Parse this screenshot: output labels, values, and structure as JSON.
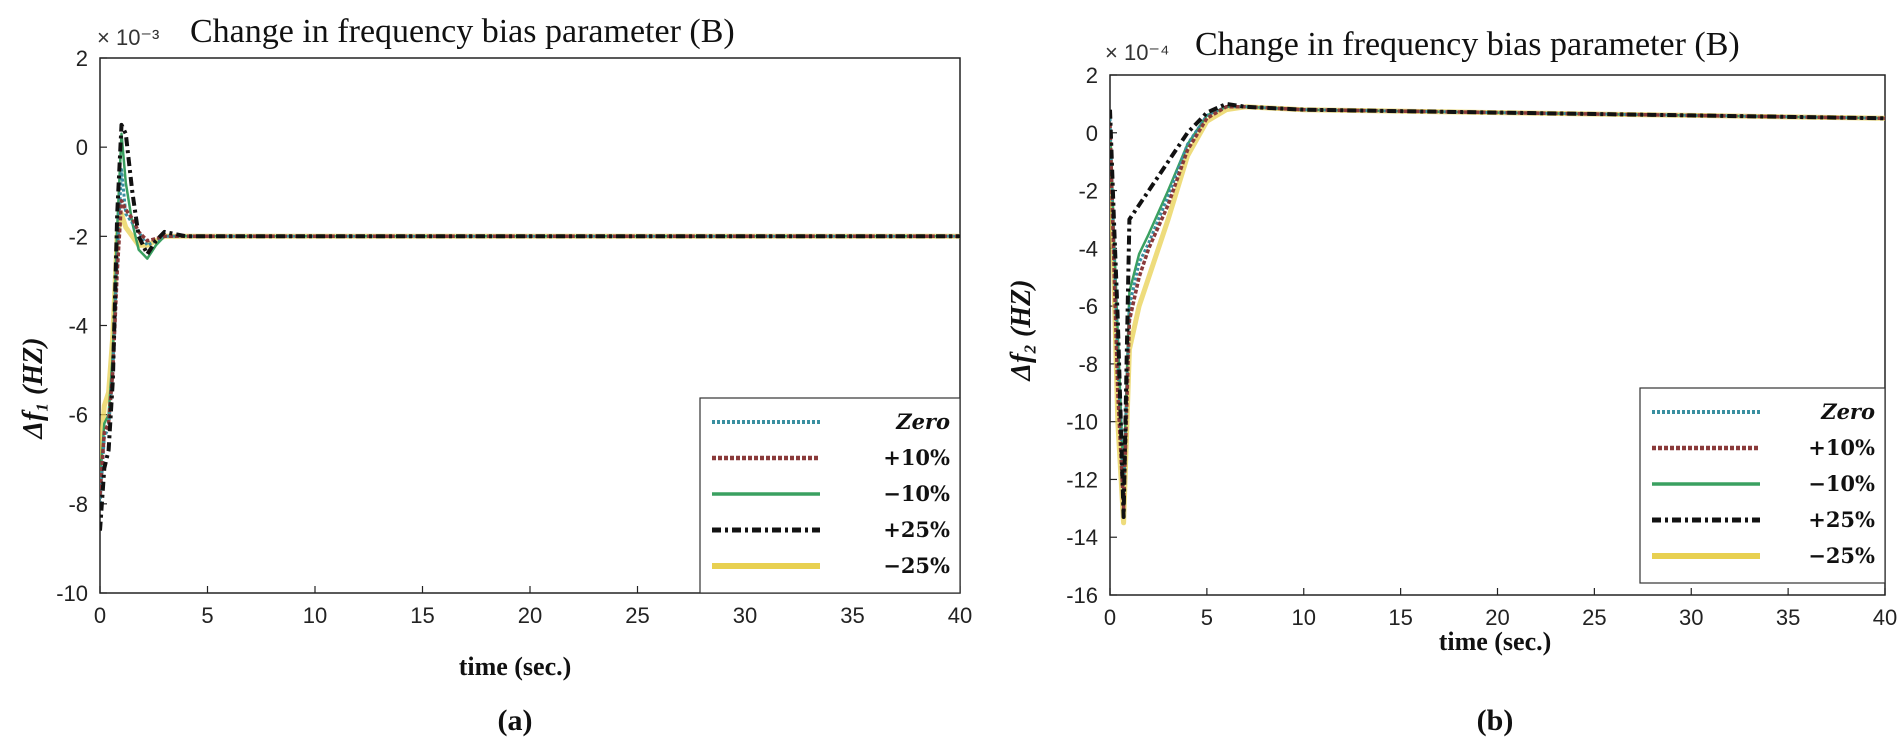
{
  "chart_data": [
    {
      "type": "line",
      "title": "Change in frequency bias parameter (B)",
      "multiplier": "× 10⁻³",
      "xlabel": "time (sec.)",
      "ylabel": "Δf₁ (HZ)",
      "caption": "(a)",
      "xlim": [
        0,
        40
      ],
      "ylim": [
        -10,
        2
      ],
      "xticks": [
        0,
        5,
        10,
        15,
        20,
        25,
        30,
        35,
        40
      ],
      "yticks": [
        -10,
        -8,
        -6,
        -4,
        -2,
        0,
        2
      ],
      "legend_position": "bottom-right",
      "series": [
        {
          "name": "Zero",
          "color": "#3a8fa0",
          "dash": "3,2",
          "width": 3,
          "x": [
            0,
            0.2,
            0.4,
            0.6,
            0.8,
            1.0,
            1.2,
            1.5,
            1.8,
            2.2,
            2.6,
            3,
            4,
            5,
            10,
            20,
            30,
            40
          ],
          "y": [
            -8.0,
            -6.5,
            -6.3,
            -5.0,
            -2.5,
            -0.5,
            -1.5,
            -1.7,
            -1.9,
            -2.2,
            -2.1,
            -2.0,
            -2.0,
            -2.0,
            -2.0,
            -2.0,
            -2.0,
            -2.0
          ]
        },
        {
          "name": "+10%",
          "color": "#8a3a3a",
          "dash": "4,2",
          "width": 3.5,
          "x": [
            0,
            0.2,
            0.4,
            0.6,
            0.8,
            1.0,
            1.2,
            1.5,
            1.8,
            2.2,
            2.6,
            3,
            4,
            5,
            10,
            20,
            30,
            40
          ],
          "y": [
            -7.8,
            -6.4,
            -6.2,
            -5.0,
            -2.8,
            -1.2,
            -1.4,
            -1.6,
            -1.9,
            -2.1,
            -2.05,
            -2.0,
            -2.0,
            -2.0,
            -2.0,
            -2.0,
            -2.0,
            -2.0
          ]
        },
        {
          "name": "−10%",
          "color": "#3aa060",
          "dash": "",
          "width": 2.5,
          "x": [
            0,
            0.2,
            0.4,
            0.6,
            0.8,
            1.0,
            1.2,
            1.5,
            1.8,
            2.2,
            2.6,
            3,
            4,
            5,
            10,
            20,
            30,
            40
          ],
          "y": [
            -7.5,
            -6.2,
            -6.0,
            -4.6,
            -1.8,
            0.3,
            -0.8,
            -1.7,
            -2.3,
            -2.5,
            -2.2,
            -2.0,
            -2.0,
            -2.0,
            -2.0,
            -2.0,
            -2.0,
            -2.0
          ]
        },
        {
          "name": "+25%",
          "color": "#111111",
          "dash": "9,4,3,4",
          "width": 4,
          "x": [
            0,
            0.2,
            0.4,
            0.6,
            0.8,
            1.0,
            1.2,
            1.5,
            1.8,
            2.2,
            2.6,
            3,
            4,
            5,
            10,
            20,
            30,
            40
          ],
          "y": [
            -8.6,
            -7.2,
            -6.8,
            -5.2,
            -1.5,
            0.5,
            0.3,
            -1.0,
            -2.0,
            -2.4,
            -2.1,
            -1.9,
            -2.0,
            -2.0,
            -2.0,
            -2.0,
            -2.0,
            -2.0
          ]
        },
        {
          "name": "−25%",
          "color": "#e8d050",
          "dash": "",
          "width": 5,
          "x": [
            0,
            0.2,
            0.4,
            0.6,
            0.8,
            1.0,
            1.2,
            1.5,
            1.8,
            2.2,
            2.6,
            3,
            4,
            5,
            10,
            20,
            30,
            40
          ],
          "y": [
            -7.0,
            -5.8,
            -5.5,
            -4.2,
            -2.0,
            -1.5,
            -1.8,
            -2.0,
            -2.2,
            -2.2,
            -2.1,
            -2.0,
            -2.0,
            -2.0,
            -2.0,
            -2.0,
            -2.0,
            -2.0
          ]
        }
      ]
    },
    {
      "type": "line",
      "title": "Change in frequency bias parameter (B)",
      "multiplier": "× 10⁻⁴",
      "xlabel": "time (sec.)",
      "ylabel": "Δf₂ (HZ)",
      "caption": "(b)",
      "xlim": [
        0,
        40
      ],
      "ylim": [
        -16,
        2
      ],
      "xticks": [
        0,
        5,
        10,
        15,
        20,
        25,
        30,
        35,
        40
      ],
      "yticks": [
        -16,
        -14,
        -12,
        -10,
        -8,
        -6,
        -4,
        -2,
        0,
        2
      ],
      "ytick_labels": [
        "-16",
        "-14",
        "-12",
        "-10",
        "-8",
        "-6",
        "-4",
        "-2",
        "0",
        "2"
      ],
      "legend_position": "bottom-right",
      "series": [
        {
          "name": "Zero",
          "color": "#3a8fa0",
          "dash": "3,2",
          "width": 3,
          "x": [
            0,
            0.2,
            0.4,
            0.7,
            1.0,
            1.5,
            2,
            3,
            4,
            5,
            6,
            7,
            10,
            20,
            30,
            40
          ],
          "y": [
            0.5,
            -4.0,
            -8.0,
            -12.5,
            -6.0,
            -4.5,
            -3.8,
            -2.2,
            -0.4,
            0.6,
            0.9,
            0.9,
            0.8,
            0.7,
            0.6,
            0.5
          ]
        },
        {
          "name": "+10%",
          "color": "#8a3a3a",
          "dash": "4,2",
          "width": 3.5,
          "x": [
            0,
            0.2,
            0.4,
            0.7,
            1.0,
            1.5,
            2,
            3,
            4,
            5,
            6,
            7,
            10,
            20,
            30,
            40
          ],
          "y": [
            0.3,
            -4.5,
            -9.0,
            -13.0,
            -6.5,
            -5.0,
            -4.0,
            -2.5,
            -0.6,
            0.5,
            0.9,
            0.9,
            0.8,
            0.7,
            0.6,
            0.5
          ]
        },
        {
          "name": "−10%",
          "color": "#3aa060",
          "dash": "",
          "width": 2.5,
          "x": [
            0,
            0.2,
            0.4,
            0.7,
            1.0,
            1.5,
            2,
            3,
            4,
            5,
            6,
            7,
            10,
            20,
            30,
            40
          ],
          "y": [
            0.2,
            -3.5,
            -7.0,
            -12.0,
            -5.5,
            -4.2,
            -3.5,
            -2.0,
            -0.4,
            0.6,
            0.9,
            0.9,
            0.8,
            0.7,
            0.6,
            0.5
          ]
        },
        {
          "name": "+25%",
          "color": "#111111",
          "dash": "9,4,3,4",
          "width": 4,
          "x": [
            0,
            0.2,
            0.4,
            0.7,
            1.0,
            1.5,
            2,
            3,
            4,
            5,
            6,
            7,
            10,
            20,
            30,
            40
          ],
          "y": [
            0.8,
            -3.0,
            -6.5,
            -13.3,
            -3.0,
            -2.5,
            -2.0,
            -1.0,
            0.0,
            0.7,
            1.0,
            0.9,
            0.8,
            0.7,
            0.6,
            0.5
          ]
        },
        {
          "name": "−25%",
          "color": "#e8d050",
          "dash": "",
          "width": 5,
          "x": [
            0,
            0.2,
            0.4,
            0.7,
            1.0,
            1.5,
            2,
            3,
            4,
            5,
            6,
            7,
            10,
            20,
            30,
            40
          ],
          "y": [
            -0.5,
            -5.0,
            -10.0,
            -13.5,
            -7.5,
            -6.0,
            -5.0,
            -3.0,
            -0.8,
            0.4,
            0.8,
            0.9,
            0.8,
            0.7,
            0.6,
            0.5
          ]
        }
      ]
    }
  ]
}
